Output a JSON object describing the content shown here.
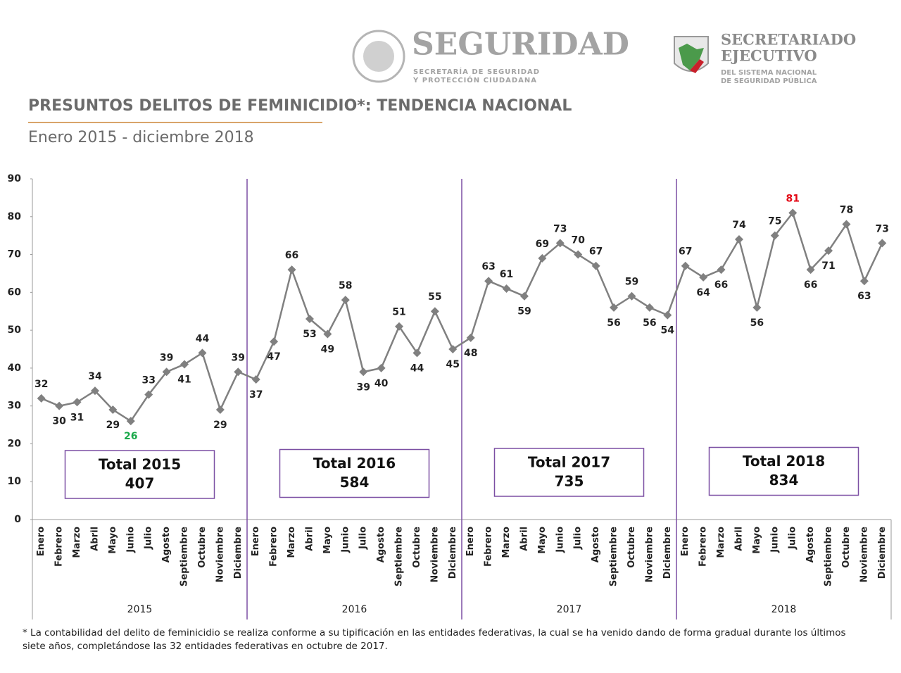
{
  "header": {
    "brand": "SEGURIDAD",
    "brand_sub_1": "SECRETARÍA DE SEGURIDAD",
    "brand_sub_2": "Y PROTECCIÓN CIUDADANA",
    "org_1": "SECRETARIADO",
    "org_2": "EJECUTIVO",
    "org_sub_1": "DEL SISTEMA NACIONAL",
    "org_sub_2": "DE SEGURIDAD PÚBLICA"
  },
  "chart_data": {
    "type": "line",
    "title": "PRESUNTOS DELITOS DE FEMINICIDIO*: TENDENCIA NACIONAL",
    "subtitle": "Enero 2015 - diciembre 2018",
    "categories": [
      "Enero",
      "Febrero",
      "Marzo",
      "Abril",
      "Mayo",
      "Junio",
      "Julio",
      "Agosto",
      "Septiembre",
      "Octubre",
      "Noviembre",
      "Diciembre",
      "Enero",
      "Febrero",
      "Marzo",
      "Abril",
      "Mayo",
      "Junio",
      "Julio",
      "Agosto",
      "Septiembre",
      "Octubre",
      "Noviembre",
      "Diciembre",
      "Enero",
      "Febrero",
      "Marzo",
      "Abril",
      "Mayo",
      "Junio",
      "Julio",
      "Agosto",
      "Septiembre",
      "Octubre",
      "Noviembre",
      "Diciembre",
      "Enero",
      "Febrero",
      "Marzo",
      "Abril",
      "Mayo",
      "Junio",
      "Julio",
      "Agosto",
      "Septiembre",
      "Octubre",
      "Noviembre",
      "Diciembre"
    ],
    "years": [
      "2015",
      "2016",
      "2017",
      "2018"
    ],
    "total_labels": [
      "Total 2015",
      "Total 2016",
      "Total 2017",
      "Total 2018"
    ],
    "totals": [
      407,
      584,
      735,
      834
    ],
    "series": [
      {
        "color": "#808080",
        "values": [
          32,
          30,
          31,
          34,
          29,
          26,
          33,
          39,
          41,
          44,
          29,
          39,
          37,
          47,
          66,
          53,
          49,
          58,
          39,
          40,
          51,
          44,
          55,
          45,
          48,
          63,
          61,
          59,
          69,
          73,
          70,
          67,
          56,
          59,
          56,
          54,
          67,
          64,
          66,
          74,
          56,
          75,
          81,
          66,
          71,
          78,
          63,
          73
        ]
      }
    ],
    "min_label_color": "#1aa84a",
    "max_label_color": "#e30613",
    "divider_color": "#7b4fa3",
    "ylim": [
      0,
      90
    ],
    "yticks": [
      0,
      10,
      20,
      30,
      40,
      50,
      60,
      70,
      80,
      90
    ]
  },
  "footnote": "* La contabilidad del delito de feminicidio se realiza conforme a su tipificación en las entidades federativas, la cual se ha venido dando de forma gradual durante los últimos siete años, completándose las 32 entidades federativas en octubre de 2017."
}
